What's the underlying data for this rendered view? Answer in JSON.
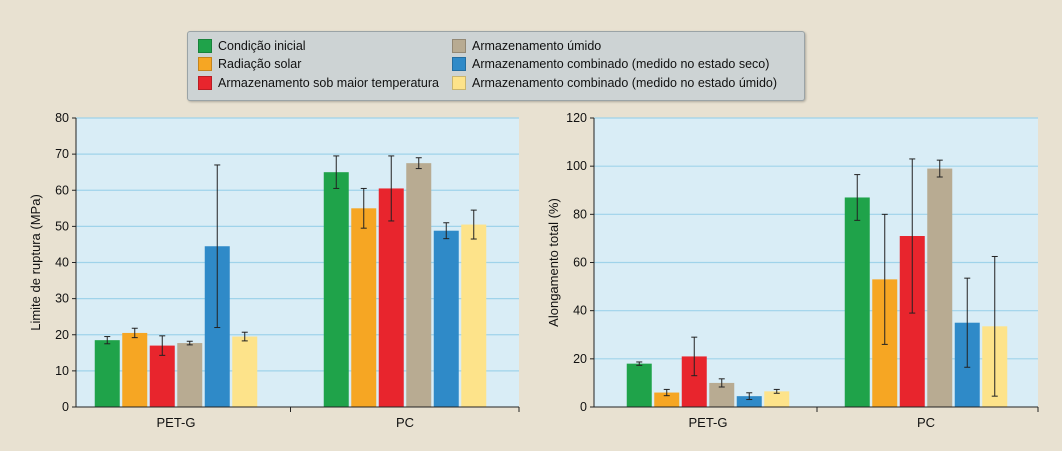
{
  "legend": [
    {
      "label": "Condição inicial",
      "color": "#1fa34a"
    },
    {
      "label": "Radiação solar",
      "color": "#f6a623"
    },
    {
      "label": "Armazenamento sob maior temperatura",
      "color": "#e8252d"
    },
    {
      "label": "Armazenamento úmido",
      "color": "#b8ab92"
    },
    {
      "label": "Armazenamento combinado (medido no estado seco)",
      "color": "#2f8ac8"
    },
    {
      "label": "Armazenamento combinado (medido no estado úmido)",
      "color": "#fde38a"
    }
  ],
  "chart_data": [
    {
      "type": "bar",
      "ylabel": "Limite de ruptura (MPa)",
      "ylim": [
        0,
        80
      ],
      "yticks": [
        0,
        10,
        20,
        30,
        40,
        50,
        60,
        70,
        80
      ],
      "categories": [
        "PET-G",
        "PC"
      ],
      "series": [
        {
          "name": "Condição inicial",
          "values": [
            18.5,
            65
          ],
          "errors": [
            1,
            4.5
          ]
        },
        {
          "name": "Radiação solar",
          "values": [
            20.5,
            55
          ],
          "errors": [
            1.3,
            5.5
          ]
        },
        {
          "name": "Armazenamento sob maior temperatura",
          "values": [
            17,
            60.5
          ],
          "errors": [
            2.7,
            9
          ]
        },
        {
          "name": "Armazenamento úmido",
          "values": [
            17.7,
            67.5
          ],
          "errors": [
            0.5,
            1.5
          ]
        },
        {
          "name": "Armazenamento combinado (medido no estado seco)",
          "values": [
            44.5,
            48.8
          ],
          "errors": [
            22.5,
            2.2
          ]
        },
        {
          "name": "Armazenamento combinado (medido no estado úmido)",
          "values": [
            19.5,
            50.5
          ],
          "errors": [
            1.2,
            4
          ]
        }
      ]
    },
    {
      "type": "bar",
      "ylabel": "Alongamento total (%)",
      "ylim": [
        0,
        120
      ],
      "yticks": [
        0,
        20,
        40,
        60,
        80,
        100,
        120
      ],
      "categories": [
        "PET-G",
        "PC"
      ],
      "series": [
        {
          "name": "Condição inicial",
          "values": [
            18,
            87
          ],
          "errors": [
            0.7,
            9.5
          ]
        },
        {
          "name": "Radiação solar",
          "values": [
            6,
            53
          ],
          "errors": [
            1.3,
            27
          ]
        },
        {
          "name": "Armazenamento sob maior temperatura",
          "values": [
            21,
            71
          ],
          "errors": [
            8,
            32
          ]
        },
        {
          "name": "Armazenamento úmido",
          "values": [
            10,
            99
          ],
          "errors": [
            1.7,
            3.5
          ]
        },
        {
          "name": "Armazenamento combinado (medido no estado seco)",
          "values": [
            4.5,
            35
          ],
          "errors": [
            1.4,
            18.5
          ]
        },
        {
          "name": "Armazenamento combinado (medido no estado úmido)",
          "values": [
            6.5,
            33.5
          ],
          "errors": [
            0.8,
            29
          ]
        }
      ]
    }
  ]
}
